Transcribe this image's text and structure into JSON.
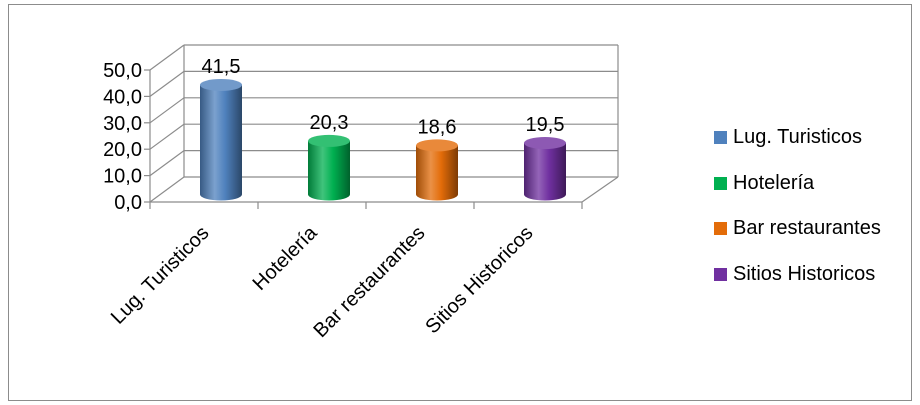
{
  "chart_data": {
    "type": "bar",
    "style": "3d-cylinder",
    "categories": [
      "Lug. Turisticos",
      "Hotelería",
      "Bar restaurantes",
      "Sitios Historicos"
    ],
    "values": [
      41.5,
      20.3,
      18.6,
      19.5
    ],
    "value_labels": [
      "41,5",
      "20,3",
      "18,6",
      "19,5"
    ],
    "colors": [
      "#4f81bd",
      "#00b050",
      "#e36c09",
      "#7030a0"
    ],
    "yticks": [
      "0,0",
      "10,0",
      "20,0",
      "30,0",
      "40,0",
      "50,0"
    ],
    "ylim": [
      0,
      50
    ],
    "grid": true,
    "legend": "right",
    "legend_entries": [
      "Lug. Turisticos",
      "Hotelería",
      "Bar restaurantes",
      "Sitios Historicos"
    ],
    "title": "",
    "xlabel": "",
    "ylabel": ""
  }
}
